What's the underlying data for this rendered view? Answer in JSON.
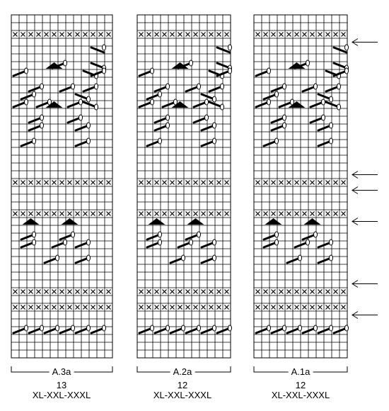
{
  "charts": [
    {
      "name": "A.3a",
      "stitches": 13,
      "sizes": "XL-XXL-XXXL"
    },
    {
      "name": "A.2a",
      "stitches": 12,
      "sizes": "XL-XXL-XXXL"
    },
    {
      "name": "A.1a",
      "stitches": 12,
      "sizes": "XL-XXL-XXXL"
    }
  ],
  "rows": 44,
  "purl_rows": [
    2,
    21,
    25,
    35,
    37
  ],
  "arrow_rows": [
    3,
    20,
    22,
    26,
    34,
    38
  ],
  "colors": {
    "grid": "#000000",
    "background": "#ffffff"
  }
}
